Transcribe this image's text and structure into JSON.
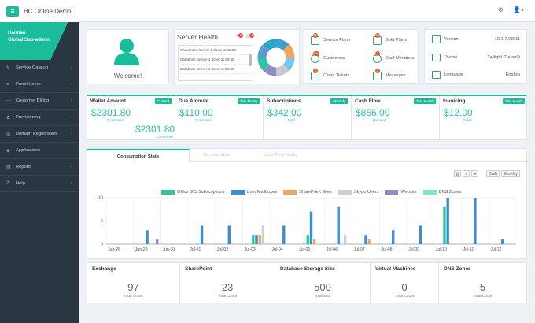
{
  "app": {
    "title": "HC Online Demo"
  },
  "topbar": {
    "settings_icon": "gear-icon",
    "user_icon": "user-icon"
  },
  "user": {
    "name": "Hannan",
    "role": "Global Sub-admin"
  },
  "sidebar": {
    "items": [
      {
        "label": "Service Catalog",
        "icon": "wrench-icon"
      },
      {
        "label": "Panel Users",
        "icon": "users-icon"
      },
      {
        "label": "Customer Billing",
        "icon": "credit-card-icon"
      },
      {
        "label": "Provisioning",
        "icon": "cog-icon"
      },
      {
        "label": "Domain Registration",
        "icon": "globe-icon"
      },
      {
        "label": "Applications",
        "icon": "layers-icon"
      },
      {
        "label": "Reports",
        "icon": "bar-chart-icon"
      },
      {
        "label": "Help",
        "icon": "help-icon"
      }
    ]
  },
  "welcome": {
    "text": "Welcome!"
  },
  "server_health": {
    "title": "Server Health",
    "badge_a": "2",
    "badge_b": "4",
    "servers": [
      "Sharepoint Server 1 down at 08:30",
      "Database Server 1 down at 08:30",
      "Database Server 1 down at 08:30"
    ],
    "donut_colors": [
      "#3aa0d6",
      "#f3a55a",
      "#7ec5e9",
      "#c9c9c9",
      "#8f8bc8",
      "#2fc5a0",
      "#5b9bd5",
      "#26a7c8"
    ]
  },
  "shortcuts": [
    {
      "label": "Service Plans",
      "badge": "22"
    },
    {
      "label": "Sold Plans",
      "badge": "45"
    },
    {
      "label": "Customers",
      "badge": "104"
    },
    {
      "label": "Staff Members",
      "badge": "2"
    },
    {
      "label": "Client Tickets",
      "badge": "3"
    },
    {
      "label": "Messages",
      "badge": "6"
    }
  ],
  "sysinfo": [
    {
      "label": "Version",
      "value": "10.1.7.23611"
    },
    {
      "label": "Theme",
      "value": "Twilight (Default)"
    },
    {
      "label": "Language",
      "value": "English"
    }
  ],
  "metrics": [
    {
      "title": "Wallet Amount",
      "tag": "Current",
      "value": "$2301.80",
      "sub": "Customer",
      "value2": "$2301.80",
      "sub2": "Customer"
    },
    {
      "title": "Due Amount",
      "tag": "This Month",
      "value": "$110.00",
      "sub": "Customer"
    },
    {
      "title": "Subscriptions",
      "tag": "Monthly",
      "value": "$342.00",
      "sub": "Sold"
    },
    {
      "title": "Cash Flow",
      "tag": "This Month",
      "value": "$856.00",
      "sub": "Receipt"
    },
    {
      "title": "Invoicing",
      "tag": "This Month",
      "value": "$12.00",
      "sub": "Sales"
    }
  ],
  "consumption": {
    "tabs": [
      "Consumption Stats",
      "Income Stats",
      "Cash Flow Stats"
    ],
    "controls": {
      "daily": "Daily",
      "monthly": "Monthly"
    }
  },
  "chart_data": {
    "type": "bar",
    "ylabel": "nc",
    "ylim": [
      0,
      10
    ],
    "yticks": [
      "10",
      "5",
      "0"
    ],
    "categories": [
      "Jun-28",
      "Jun-29",
      "Jun-30",
      "Jul-01",
      "Jul-02",
      "Jul-03",
      "Jul-04",
      "Jul-05",
      "Jul-06",
      "Jul-07",
      "Jul-08",
      "Jul-09",
      "Jul-10",
      "Jul-11",
      "Jul-12"
    ],
    "series": [
      {
        "name": "Office 365 Subscriptions",
        "color": "#2fc5a0",
        "values": [
          0,
          0,
          0,
          0,
          0,
          2,
          0,
          2,
          0,
          0,
          0,
          0,
          8,
          0,
          0
        ]
      },
      {
        "name": "User Mailboxes",
        "color": "#3b8fd0",
        "values": [
          0,
          3,
          0,
          4,
          4,
          2,
          4,
          7,
          8,
          2,
          3,
          4,
          10,
          10,
          1
        ]
      },
      {
        "name": "SharePoint Sites",
        "color": "#f3a55a",
        "values": [
          0,
          0,
          0,
          0,
          0,
          2,
          0,
          1,
          0,
          1,
          0,
          0,
          0,
          0,
          0
        ]
      },
      {
        "name": "Skype Users",
        "color": "#cfcfcf",
        "values": [
          0,
          0,
          0,
          0,
          0,
          4,
          0,
          0,
          2,
          0,
          0,
          0,
          0,
          0,
          0
        ]
      },
      {
        "name": "Website",
        "color": "#8f8bc8",
        "values": [
          0,
          1,
          0,
          0,
          0,
          0,
          0,
          0,
          0,
          0,
          0,
          0,
          0,
          0,
          0
        ]
      },
      {
        "name": "DNS Zones",
        "color": "#7ee8cf",
        "values": [
          0,
          0,
          0,
          0,
          0,
          0,
          0,
          0,
          0,
          0,
          0,
          0,
          0,
          0,
          0
        ]
      }
    ]
  },
  "stats": [
    {
      "title": "Exchange",
      "value": "97",
      "sub": "Total Count"
    },
    {
      "title": "SharePoint",
      "value": "23",
      "sub": "Total Count"
    },
    {
      "title": "Database Storage Size",
      "value": "500",
      "sub": "Total Size"
    },
    {
      "title": "Virtual Machines",
      "value": "0",
      "sub": "Total Count"
    },
    {
      "title": "DNS Zones",
      "value": "5",
      "sub": "Total Count"
    }
  ]
}
